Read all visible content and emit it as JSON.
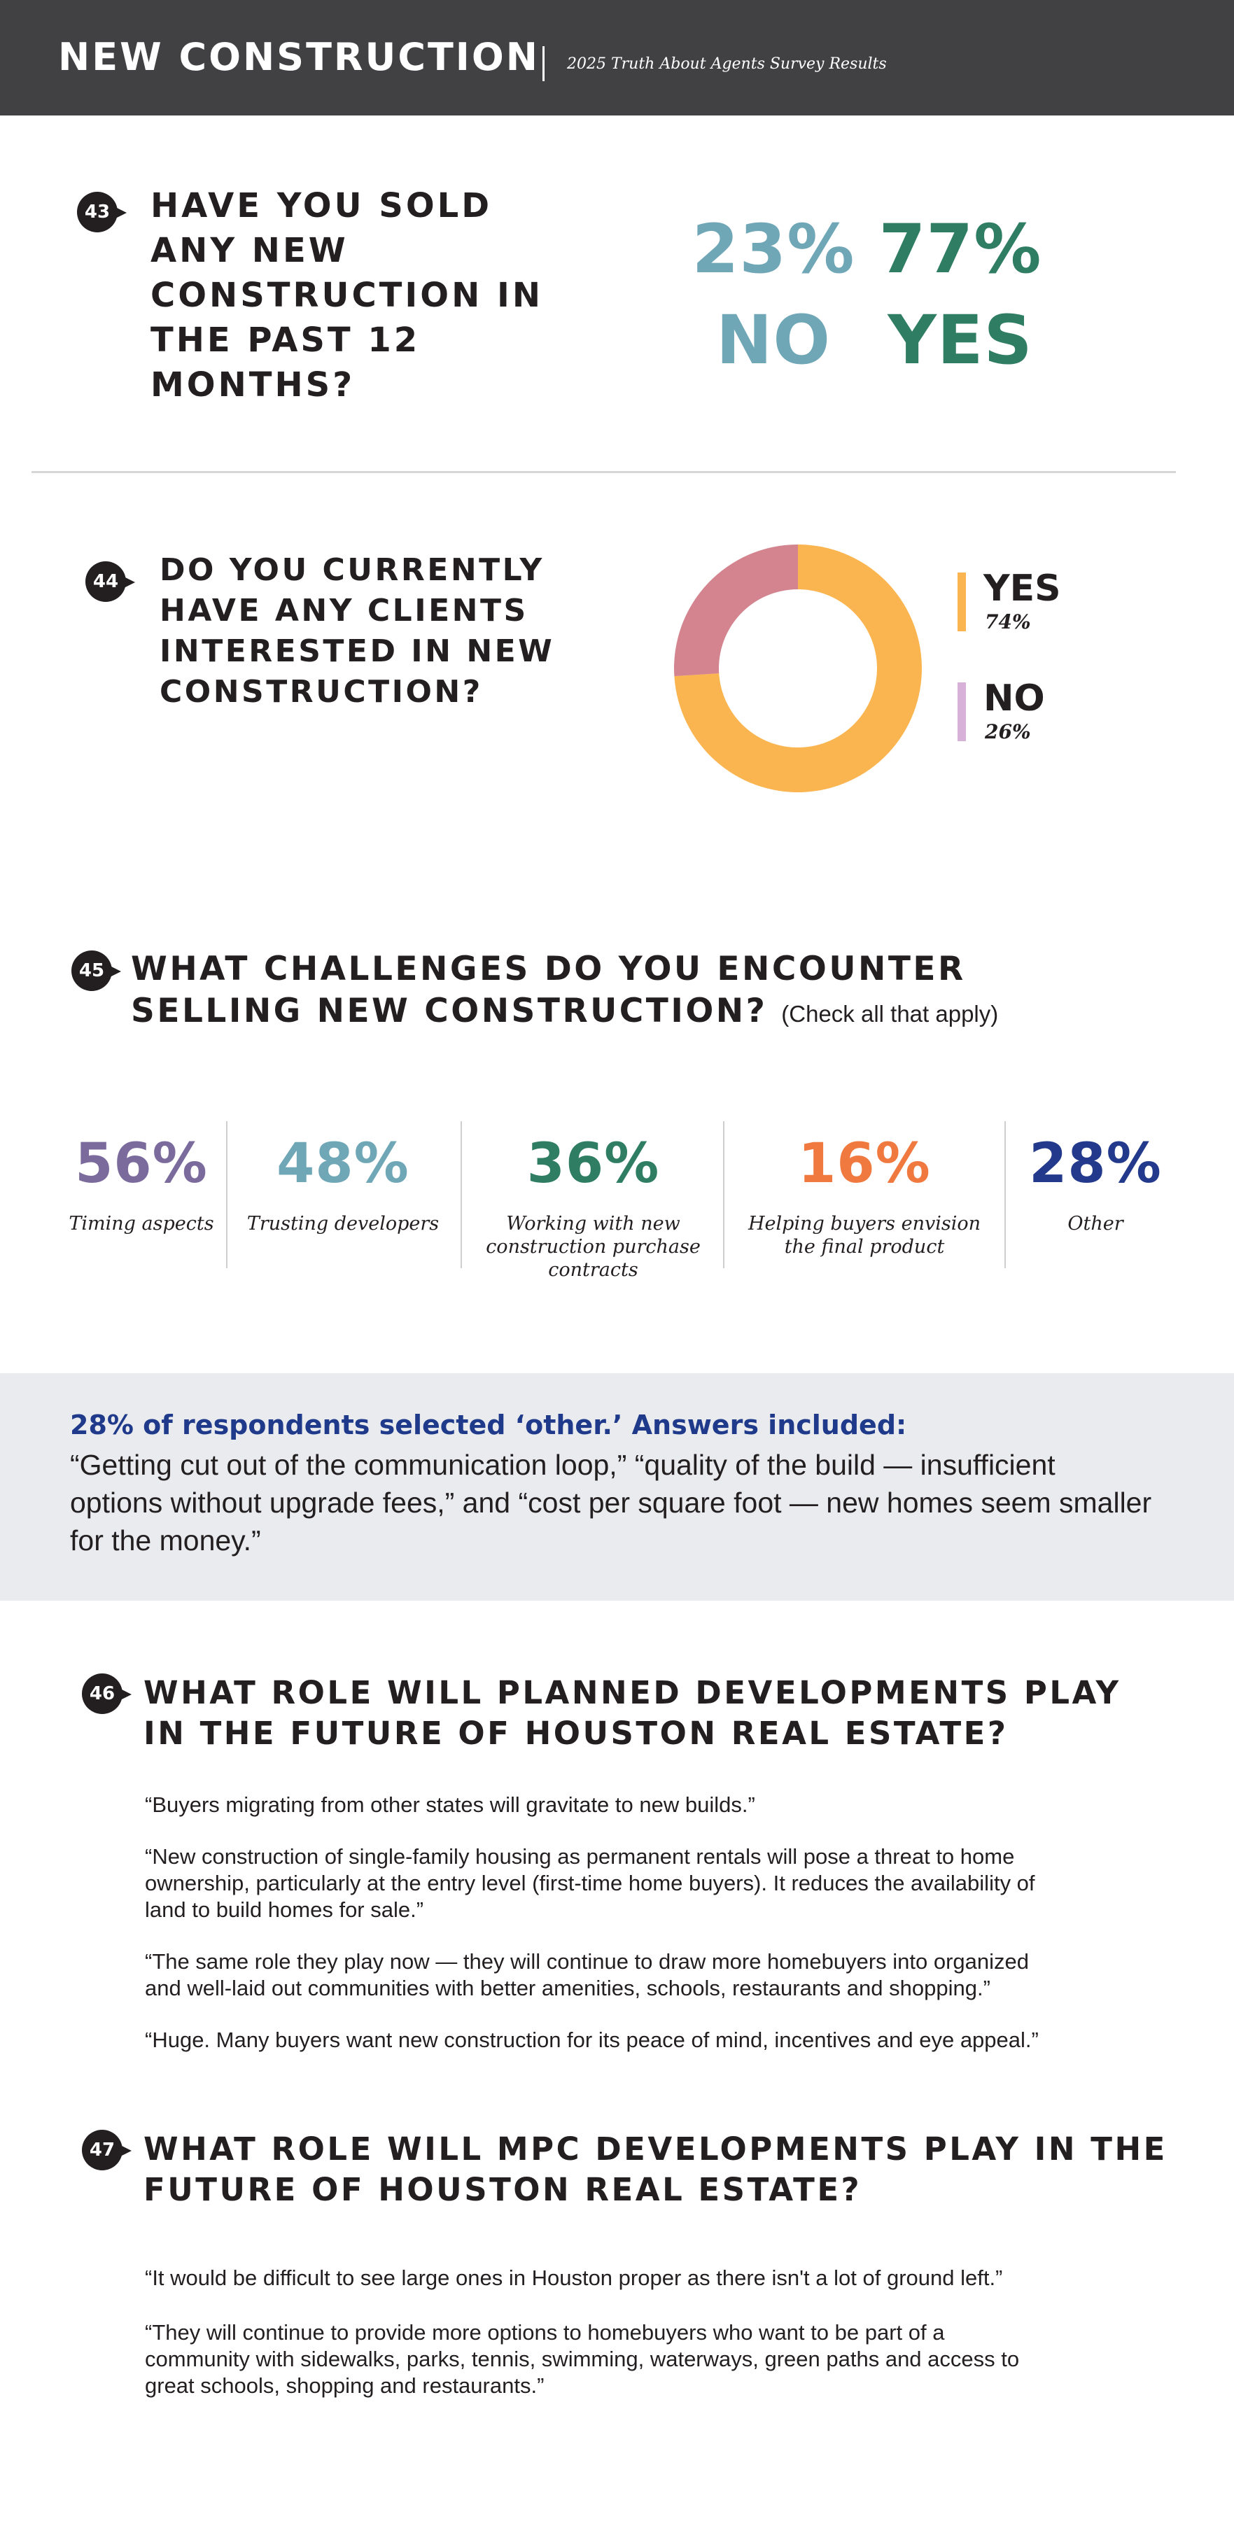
{
  "header": {
    "title": "NEW CONSTRUCTION",
    "subtitle": "2025 Truth About Agents Survey Results",
    "bg_color": "#414042"
  },
  "q43": {
    "number": "43",
    "question_lines": [
      "HAVE YOU SOLD",
      "ANY NEW",
      "CONSTRUCTION IN",
      "THE PAST 12",
      "MONTHS?"
    ],
    "no_pct": "23%",
    "no_label": "NO",
    "yes_pct": "77%",
    "yes_label": "YES",
    "no_color": "#6fa7b7",
    "yes_color": "#2f7d63"
  },
  "q44": {
    "number": "44",
    "question_lines": [
      "DO YOU CURRENTLY",
      "HAVE ANY CLIENTS",
      "INTERESTED IN NEW",
      "CONSTRUCTION?"
    ],
    "chart_data": {
      "type": "pie",
      "categories": [
        "YES",
        "NO"
      ],
      "values": [
        74,
        26
      ],
      "colors": [
        "#fbb550",
        "#d4848e"
      ],
      "labels": [
        "74%",
        "26%"
      ],
      "legend_position": "right"
    },
    "legend": [
      {
        "label": "YES",
        "pct": "74%",
        "color": "#fbb550"
      },
      {
        "label": "NO",
        "pct": "26%",
        "color": "#d7b1d8"
      }
    ]
  },
  "q45": {
    "number": "45",
    "question_line1": "WHAT CHALLENGES DO YOU ENCOUNTER",
    "question_line2": "SELLING NEW CONSTRUCTION?",
    "note": "(Check all that apply)",
    "stats": [
      {
        "pct": "56%",
        "label_lines": [
          "Timing aspects"
        ],
        "color": "#7b6b9d"
      },
      {
        "pct": "48%",
        "label_lines": [
          "Trusting developers"
        ],
        "color": "#6fa7b7"
      },
      {
        "pct": "36%",
        "label_lines": [
          "Working with new",
          "construction purchase",
          "contracts"
        ],
        "color": "#2f7d63"
      },
      {
        "pct": "16%",
        "label_lines": [
          "Helping buyers envision",
          "the final product"
        ],
        "color": "#f0793f"
      },
      {
        "pct": "28%",
        "label_lines": [
          "Other"
        ],
        "color": "#233a8c"
      }
    ]
  },
  "other_box": {
    "headline": "28% of respondents selected ‘other.’ Answers included:",
    "body_lines": [
      "“Getting cut out of the communication loop,” “quality of the build — insufficient",
      "options without upgrade fees,” and “cost per square foot — new homes seem smaller",
      "for the money.”"
    ]
  },
  "q46": {
    "number": "46",
    "question_line1": "WHAT ROLE WILL PLANNED DEVELOPMENTS PLAY",
    "question_line2": "IN THE FUTURE OF HOUSTON REAL ESTATE?",
    "quotes": [
      [
        "“Buyers migrating from other states will gravitate to new builds.”"
      ],
      [
        "“New construction of single-family housing as permanent rentals will pose a threat to home",
        "ownership, particularly at the entry level (first-time home buyers). It reduces the availability of",
        "land to build homes for sale.”"
      ],
      [
        "“The same role they play now — they will continue to draw more homebuyers into organized",
        "and well-laid out communities with better amenities, schools, restaurants and shopping.”"
      ],
      [
        "“Huge. Many buyers want new construction for its peace of mind, incentives and eye appeal.”"
      ]
    ]
  },
  "q47": {
    "number": "47",
    "question_line1": "WHAT ROLE WILL MPC DEVELOPMENTS PLAY IN THE",
    "question_line2": "FUTURE OF HOUSTON REAL ESTATE?",
    "quotes": [
      [
        "“It would be difficult to see large ones in Houston proper as there isn't a lot of ground left.”"
      ],
      [
        "“They will continue to provide more options to homebuyers who want to be part of a",
        "community with sidewalks, parks, tennis, swimming, waterways, green paths and access to",
        "great schools, shopping and restaurants.”"
      ]
    ]
  }
}
